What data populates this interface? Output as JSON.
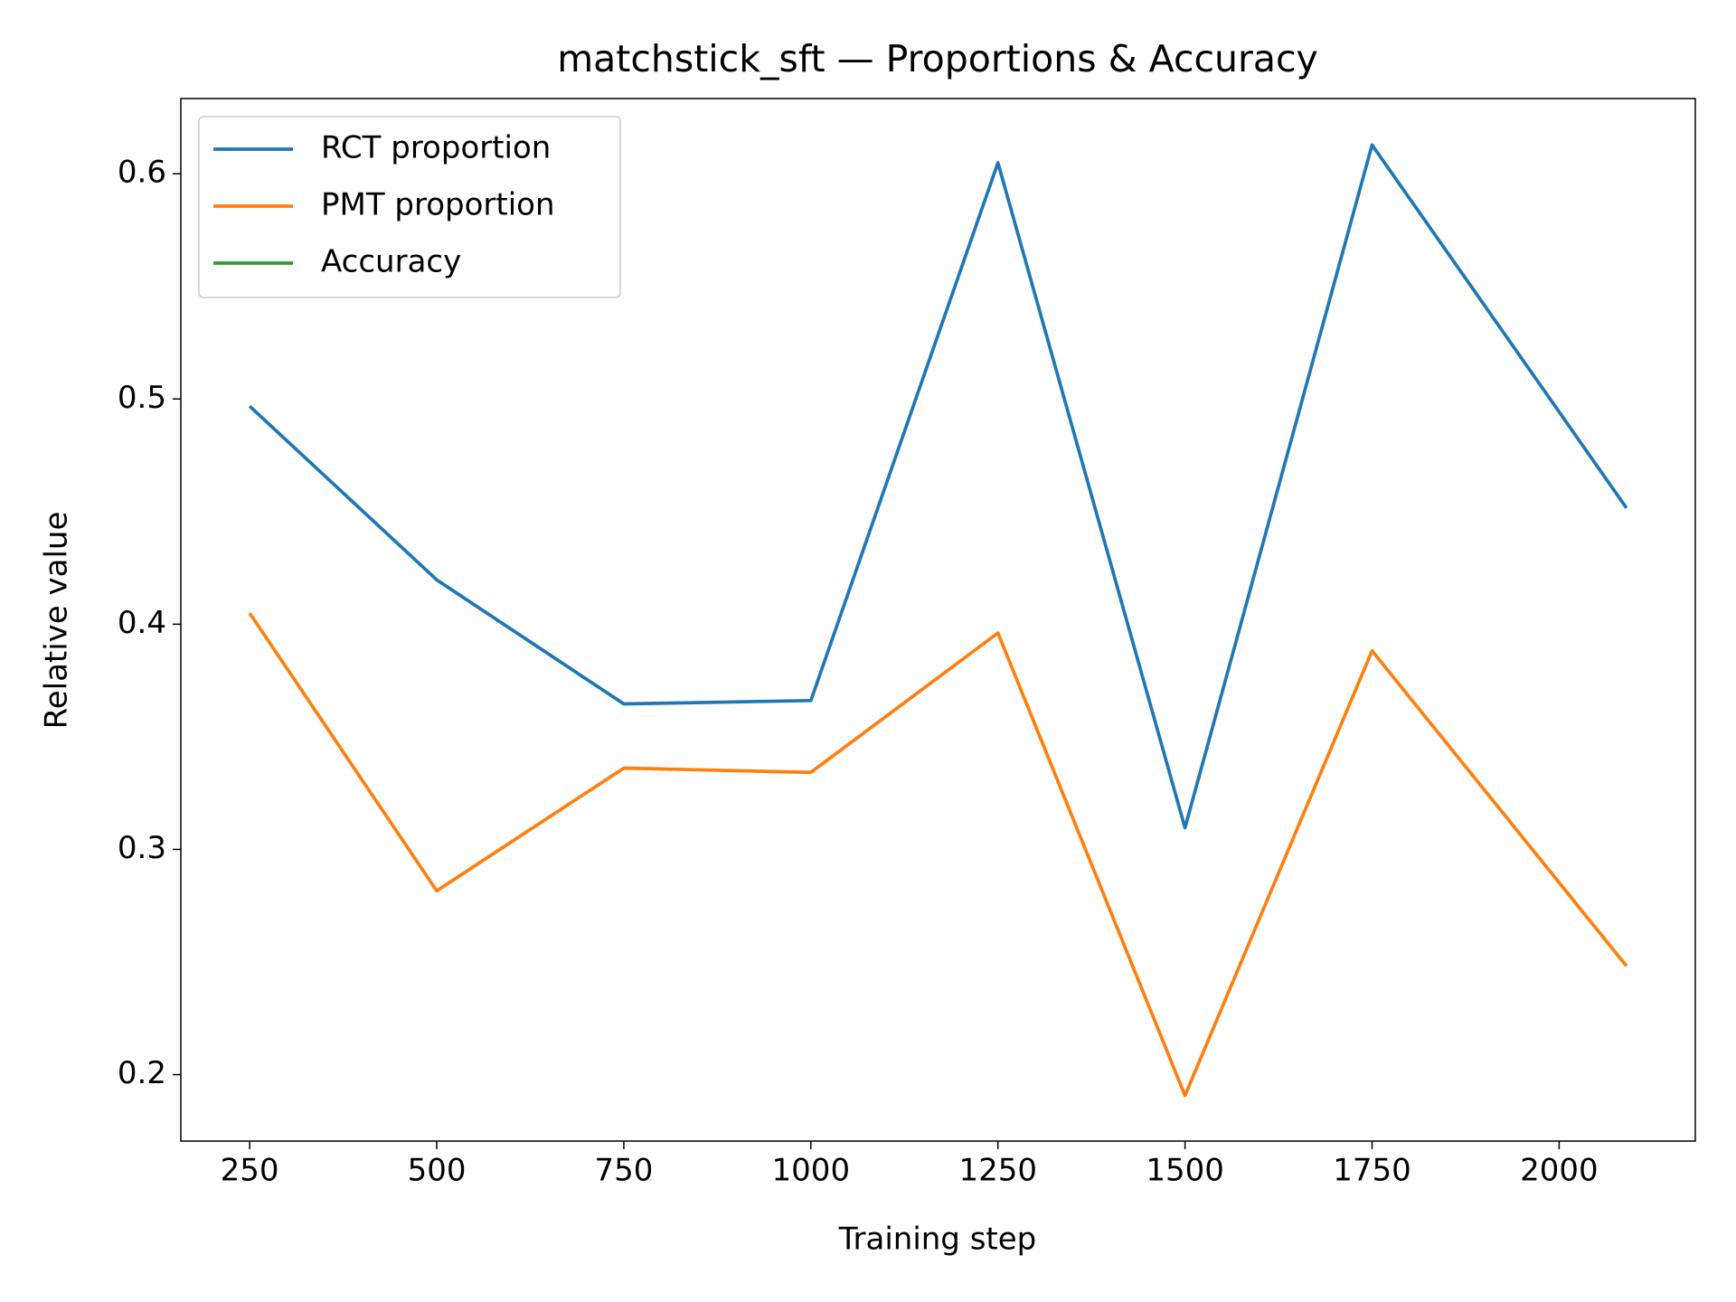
{
  "chart_data": {
    "type": "line",
    "title": "matchstick_sft — Proportions & Accuracy",
    "x_label": "Training step",
    "y_label": "Relative value",
    "x": [
      250,
      500,
      750,
      1000,
      1250,
      1500,
      1750,
      2090
    ],
    "series": [
      {
        "name": "RCT proportion",
        "color": "#1f77b4",
        "values": [
          0.4968,
          0.4197,
          0.3646,
          0.3661,
          0.6049,
          0.3096,
          0.6128,
          0.4516
        ]
      },
      {
        "name": "PMT proportion",
        "color": "#ff7f0e",
        "values": [
          0.4049,
          0.2816,
          0.3361,
          0.3342,
          0.3961,
          0.1907,
          0.3882,
          0.2482
        ]
      },
      {
        "name": "Accuracy",
        "color": "#2ca02c",
        "values": [
          null,
          null,
          null,
          null,
          null,
          null,
          null,
          null
        ]
      }
    ],
    "xlim": [
      158,
      2182
    ],
    "ylim": [
      0.1705,
      0.6334
    ],
    "xticks": [
      250,
      500,
      750,
      1000,
      1250,
      1500,
      1750,
      2000
    ],
    "yticks": [
      0.2,
      0.3,
      0.4,
      0.5,
      0.6
    ],
    "legend": "upper left",
    "grid": false
  }
}
